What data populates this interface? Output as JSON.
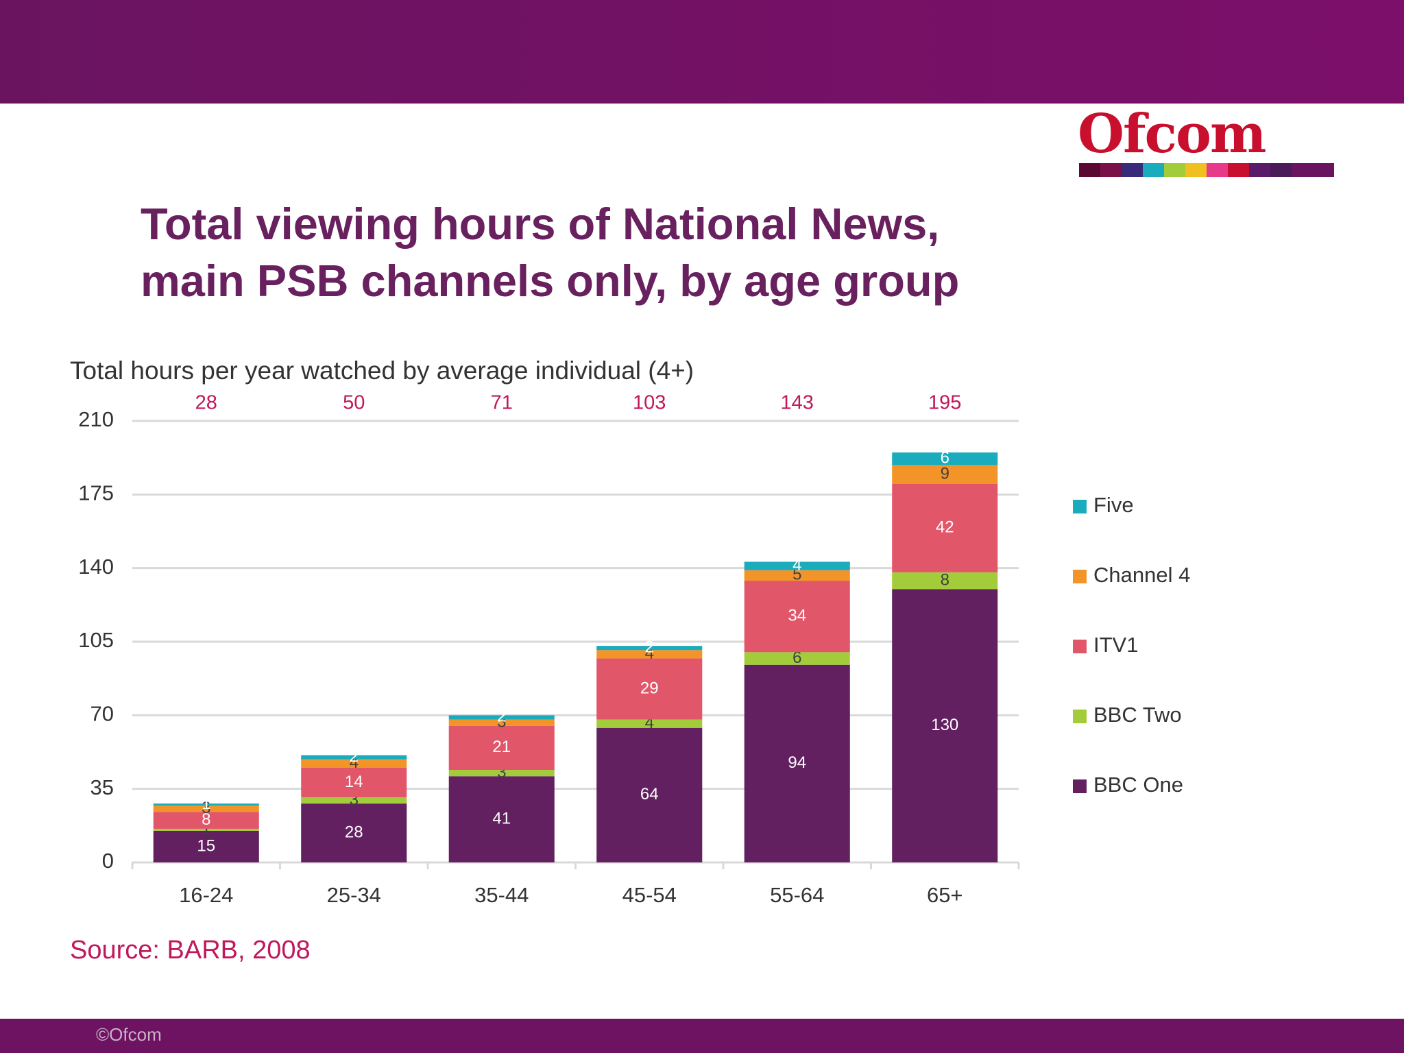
{
  "logo": "Ofcom",
  "footer": "©Ofcom",
  "chart_data": {
    "type": "stacked_bar",
    "title": "Total viewing hours of National News, main PSB channels only, by age group",
    "y_label": "Total hours per year watched by average individual (4+)",
    "source": "Source: BARB, 2008",
    "categories": [
      "16-24",
      "25-34",
      "35-44",
      "45-54",
      "55-64",
      "65+"
    ],
    "totals": [
      28,
      50,
      71,
      103,
      143,
      195
    ],
    "series": [
      {
        "name": "BBC One",
        "color": "#622060",
        "label_color": "#ffffff",
        "values": [
          15,
          28,
          41,
          64,
          94,
          130
        ]
      },
      {
        "name": "BBC Two",
        "color": "#a3cc3a",
        "label_color": "#404040",
        "values": [
          1,
          3,
          3,
          4,
          6,
          8
        ]
      },
      {
        "name": "ITV1",
        "color": "#e2566a",
        "label_color": "#ffffff",
        "values": [
          8,
          14,
          21,
          29,
          34,
          42
        ]
      },
      {
        "name": "Channel 4",
        "color": "#f39428",
        "label_color": "#404040",
        "values": [
          3,
          4,
          3,
          4,
          5,
          9
        ]
      },
      {
        "name": "Five",
        "color": "#1aabbc",
        "label_color": "#ffffff",
        "values": [
          1,
          2,
          2,
          2,
          4,
          6
        ]
      }
    ],
    "ylim": [
      0,
      210
    ],
    "yticks": [
      0,
      35,
      70,
      105,
      140,
      175,
      210
    ],
    "grid": true,
    "legend": "right"
  }
}
